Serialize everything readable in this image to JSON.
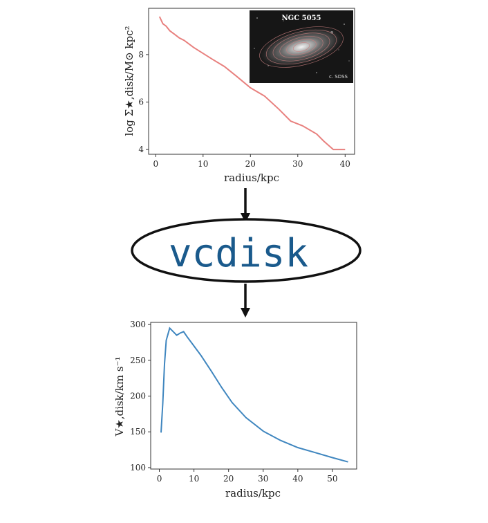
{
  "chart_data": [
    {
      "type": "line",
      "xlabel": "radius/kpc",
      "ylabel": "log Σ★,disk/M⊙ kpc²",
      "xlim": [
        -1.5,
        42
      ],
      "ylim": [
        3.8,
        9.95
      ],
      "xticks": [
        "0",
        "10",
        "20",
        "30",
        "40"
      ],
      "yticks": [
        "4",
        "6",
        "8"
      ],
      "grid": false,
      "color": "#e8807e",
      "series": [
        {
          "x": [
            0.8,
            1.5,
            2.2,
            3.0,
            4.0,
            5.0,
            6.0,
            8.0,
            10.0,
            12.0,
            14.5,
            17.0,
            20.0,
            23.0,
            26.0,
            28.5,
            31.0,
            34.0,
            35.5,
            37.5,
            40.0
          ],
          "y": [
            9.6,
            9.3,
            9.2,
            9.0,
            8.85,
            8.7,
            8.6,
            8.3,
            8.05,
            7.8,
            7.5,
            7.1,
            6.6,
            6.25,
            5.7,
            5.2,
            5.0,
            4.65,
            4.35,
            4.0,
            4.0
          ]
        }
      ]
    },
    {
      "type": "line",
      "xlabel": "radius/kpc",
      "ylabel": "V★,disk/km s⁻¹",
      "xlim": [
        -2.5,
        57
      ],
      "ylim": [
        98,
        303
      ],
      "xticks": [
        "0",
        "10",
        "20",
        "30",
        "40",
        "50"
      ],
      "yticks": [
        "100",
        "150",
        "200",
        "250",
        "300"
      ],
      "grid": false,
      "color": "#3f86bf",
      "series": [
        {
          "x": [
            0.5,
            1.0,
            1.5,
            2.0,
            3.0,
            4.0,
            5.0,
            6.0,
            7.0,
            8.0,
            10.0,
            12.0,
            15.0,
            18.0,
            21.0,
            25.0,
            30.0,
            35.0,
            40.0,
            45.0,
            50.0,
            54.5
          ],
          "y": [
            149,
            190,
            245,
            278,
            295,
            290,
            285,
            288,
            290,
            283,
            270,
            257,
            235,
            212,
            191,
            170,
            151,
            138,
            128,
            121,
            114,
            108
          ]
        }
      ]
    }
  ],
  "inset": {
    "title": "NGC 5055",
    "credit": "c. SDSS"
  },
  "center_label": "vcdisk"
}
